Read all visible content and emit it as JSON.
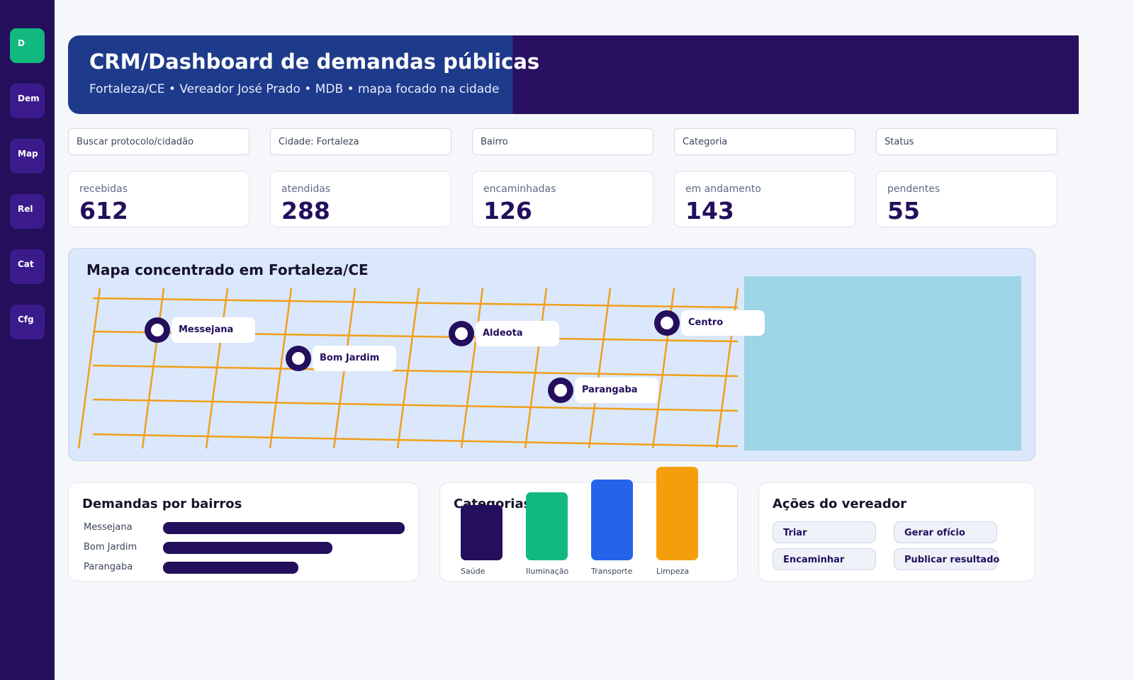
{
  "sidebar": {
    "items": [
      {
        "label": "D",
        "active": true
      },
      {
        "label": "Dem"
      },
      {
        "label": "Map"
      },
      {
        "label": "Rel"
      },
      {
        "label": "Cat"
      },
      {
        "label": "Cfg"
      }
    ]
  },
  "header": {
    "title": "CRM/Dashboard de demandas públicas",
    "subtitle": "Fortaleza/CE • Vereador José Prado • MDB • mapa focado na cidade"
  },
  "filters": {
    "search": "Buscar protocolo/cidadão",
    "city": "Cidade: Fortaleza",
    "neighborhood": "Bairro",
    "category": "Categoria",
    "status": "Status"
  },
  "kpis": [
    {
      "label": "recebidas",
      "value": "612"
    },
    {
      "label": "atendidas",
      "value": "288"
    },
    {
      "label": "encaminhadas",
      "value": "126"
    },
    {
      "label": "em andamento",
      "value": "143"
    },
    {
      "label": "pendentes",
      "value": "55"
    }
  ],
  "map": {
    "title": "Mapa concentrado em Fortaleza/CE",
    "markers": [
      "Messejana",
      "Bom Jardim",
      "Aldeota",
      "Centro",
      "Parangaba"
    ],
    "colors": {
      "streets": "#f29e1a",
      "water": "#9dd4e6",
      "land": "#dbe8fb",
      "marker": "#230f5c"
    }
  },
  "neighborhoods_card": {
    "title": "Demandas por bairros",
    "rows": [
      {
        "label": "Messejana",
        "share": 1.0
      },
      {
        "label": "Bom Jardim",
        "share": 0.7
      },
      {
        "label": "Parangaba",
        "share": 0.56
      }
    ]
  },
  "categories_card": {
    "title": "Categorias",
    "bars": [
      {
        "label": "Saúde",
        "level": 0.59,
        "color": "#230f5c"
      },
      {
        "label": "Iluminação",
        "level": 0.73,
        "color": "#12b97e"
      },
      {
        "label": "Transporte",
        "level": 0.86,
        "color": "#2563eb"
      },
      {
        "label": "Limpeza",
        "level": 1.0,
        "color": "#f59e0b"
      }
    ]
  },
  "actions_card": {
    "title": "Ações do vereador",
    "buttons": [
      "Triar",
      "Gerar ofício",
      "Encaminhar",
      "Publicar resultado"
    ]
  }
}
